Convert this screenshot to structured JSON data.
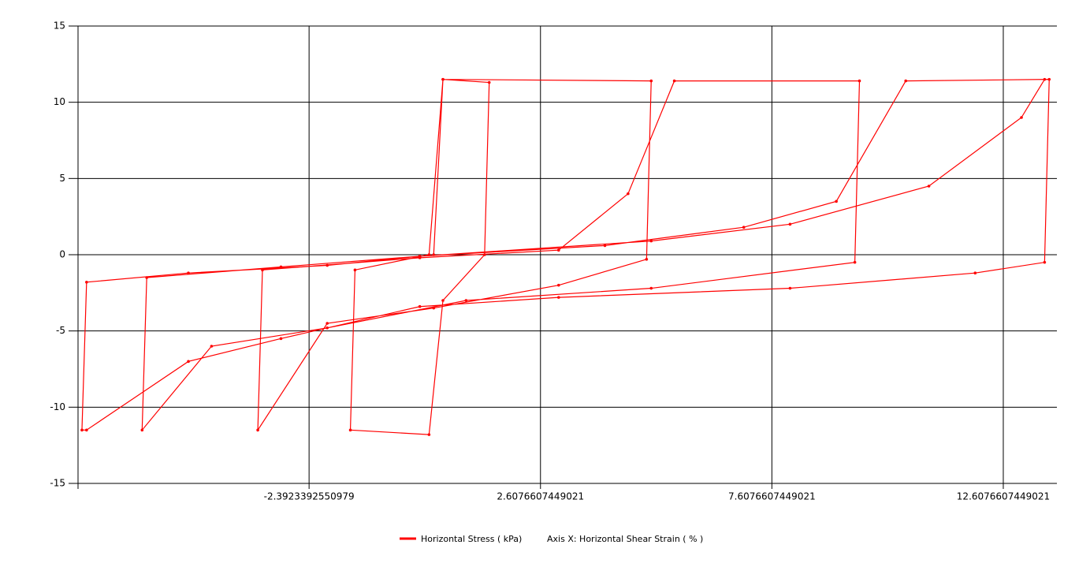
{
  "chart_data": {
    "type": "line",
    "xlim": [
      -7.3846,
      13.766
    ],
    "xticks": [
      -2.3923392550979,
      2.6076607449021,
      7.6076607449021,
      12.6076607449021
    ],
    "ylim": [
      -15,
      15
    ],
    "yticks": [
      -15,
      -10,
      -5,
      0,
      5,
      10,
      15
    ],
    "grid": true,
    "x_axis_label": "Axis X: Horizontal Shear Strain ( % )",
    "series": [
      {
        "name": "Horizontal Stress ( kPa)",
        "color": "#ff0000",
        "x": [
          0.3,
          0.5,
          1.5,
          1.4,
          0.5,
          0.2,
          -1.5,
          -1.4,
          0.2,
          0.5,
          5,
          4.9,
          3,
          0.3,
          -2,
          -3.5,
          -3.4,
          0,
          3,
          4.5,
          5.5,
          9.5,
          9.4,
          5,
          1,
          -2,
          -4.5,
          -6,
          -5.9,
          -3,
          0,
          4,
          7,
          9,
          10.5,
          13.6,
          13.5,
          12,
          8,
          3,
          0,
          -3,
          -5,
          -7.2,
          -7.3,
          -7.2,
          -5,
          -2,
          0,
          5,
          8,
          11,
          13,
          13.5
        ],
        "values": [
          0,
          11.5,
          11.3,
          0,
          -3,
          -11.8,
          -11.5,
          -1,
          0,
          11.5,
          11.4,
          -0.3,
          -2,
          -3.5,
          -4.5,
          -11.5,
          -1,
          -0.2,
          0.3,
          4,
          11.4,
          11.4,
          -0.5,
          -2.2,
          -3,
          -4.8,
          -6,
          -11.5,
          -1.5,
          -0.8,
          -0.1,
          0.6,
          1.8,
          3.5,
          11.4,
          11.5,
          -0.5,
          -1.2,
          -2.2,
          -2.8,
          -3.4,
          -5.5,
          -7,
          -11.5,
          -11.5,
          -1.8,
          -1.2,
          -0.7,
          -0.1,
          0.9,
          2,
          4.5,
          9,
          11.5
        ]
      }
    ]
  }
}
